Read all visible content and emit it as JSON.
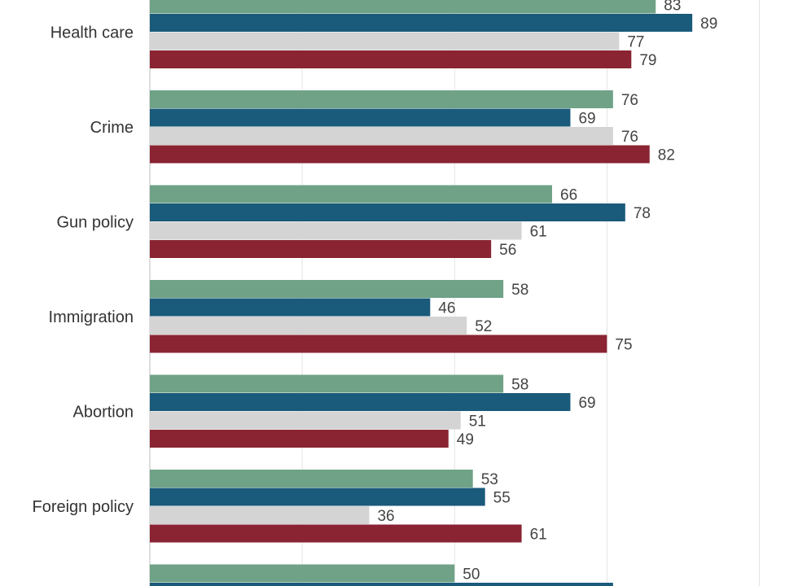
{
  "chart_data": {
    "type": "bar",
    "orientation": "horizontal",
    "categories": [
      "",
      "Health care",
      "Crime",
      "Gun policy",
      "Immigration",
      "Abortion",
      "Foreign policy",
      ""
    ],
    "series": [
      {
        "color": "#6fa287",
        "values": [
          null,
          83,
          76,
          66,
          58,
          58,
          53,
          50
        ]
      },
      {
        "color": "#1a5a7a",
        "values": [
          null,
          89,
          69,
          78,
          46,
          69,
          55,
          76
        ]
      },
      {
        "color": "#d4d4d4",
        "values": [
          null,
          77,
          76,
          61,
          52,
          51,
          36,
          null
        ]
      },
      {
        "color": "#8a2432",
        "values": [
          null,
          79,
          82,
          56,
          75,
          49,
          61,
          null
        ]
      }
    ],
    "xlim": [
      0,
      100
    ],
    "gridlines": [
      25,
      50,
      75,
      100
    ],
    "grid": true,
    "legend": "none",
    "title": "",
    "xlabel": "",
    "ylabel": ""
  }
}
